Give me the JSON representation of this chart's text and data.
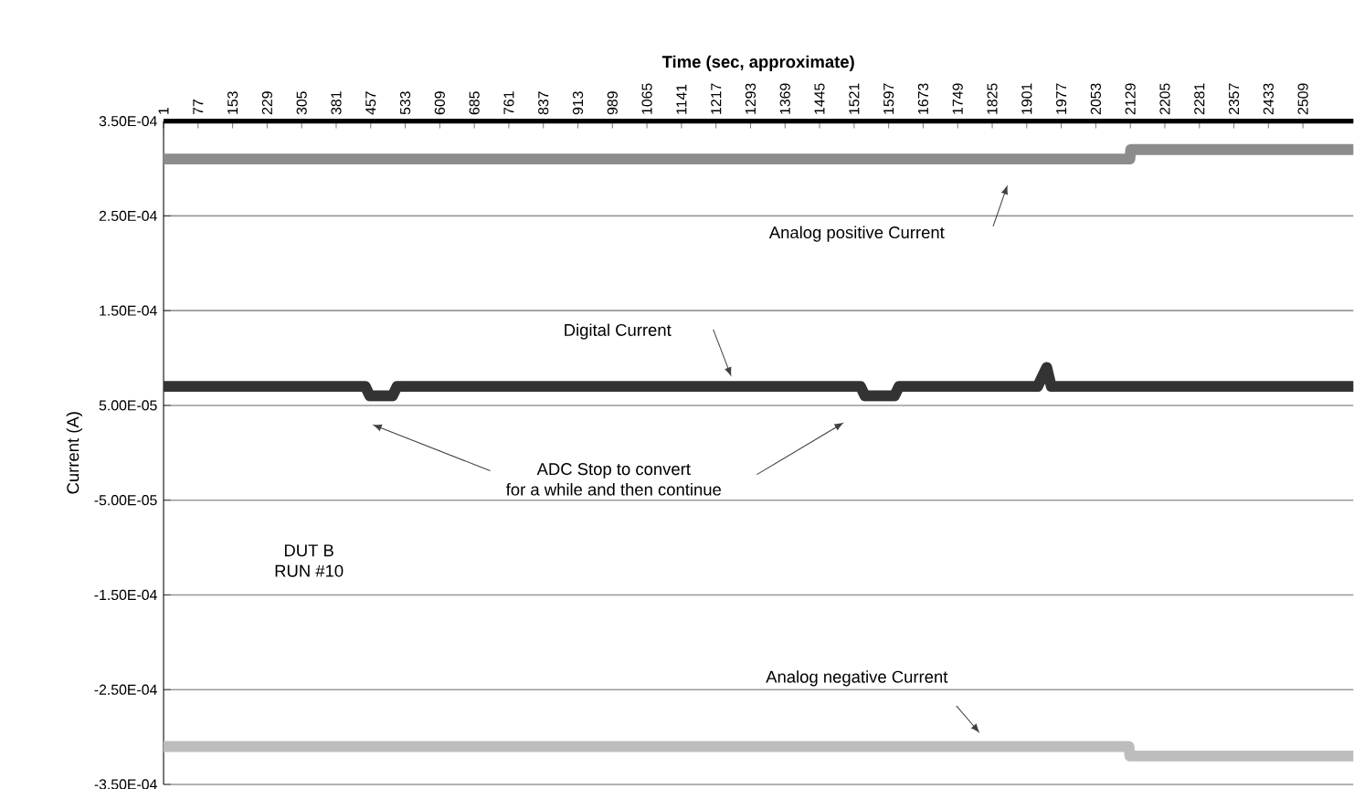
{
  "chart_data": {
    "type": "line",
    "xlabel": "Time (sec, approximate)",
    "ylabel": "Current (A)",
    "xlim": [
      1,
      2620
    ],
    "xticks": [
      1,
      77,
      153,
      229,
      305,
      381,
      457,
      533,
      609,
      685,
      761,
      837,
      913,
      989,
      1065,
      1141,
      1217,
      1293,
      1369,
      1445,
      1521,
      1597,
      1673,
      1749,
      1825,
      1901,
      1977,
      2053,
      2129,
      2205,
      2281,
      2357,
      2433,
      2509
    ],
    "ylim": [
      -0.00035,
      0.00035
    ],
    "yticks": [
      {
        "value": -0.00035,
        "label": "-3.50E-04"
      },
      {
        "value": -0.00025,
        "label": "-2.50E-04"
      },
      {
        "value": -0.00015,
        "label": "-1.50E-04"
      },
      {
        "value": -5e-05,
        "label": "-5.00E-05"
      },
      {
        "value": 5e-05,
        "label": "5.00E-05"
      },
      {
        "value": 0.00015,
        "label": "1.50E-04"
      },
      {
        "value": 0.00025,
        "label": "2.50E-04"
      },
      {
        "value": 0.00035,
        "label": "3.50E-04"
      }
    ],
    "grid": "y",
    "marker": "none",
    "line_style": "solid",
    "series": [
      {
        "color": "#8c8c8c",
        "x": [
          1,
          2128,
          2130,
          2620
        ],
        "values": [
          0.00031,
          0.00031,
          0.00032,
          0.00032
        ]
      },
      {
        "color": "#333333",
        "x": [
          1,
          445,
          455,
          505,
          515,
          1535,
          1545,
          1610,
          1620,
          1925,
          1945,
          1955,
          2620
        ],
        "values": [
          7e-05,
          7e-05,
          6e-05,
          6e-05,
          7e-05,
          7e-05,
          6e-05,
          6e-05,
          7e-05,
          7e-05,
          9e-05,
          7e-05,
          7e-05
        ]
      },
      {
        "color": "#bdbdbd",
        "x": [
          1,
          2126,
          2128,
          2620
        ],
        "values": [
          -0.00031,
          -0.00031,
          -0.00032,
          -0.00032
        ]
      }
    ],
    "annotations": [
      "Analog positive Current",
      "Digital Current",
      "Analog negative Current",
      "ADC Stop to convert\nfor a while and then continue",
      "DUT B\nRUN #10"
    ]
  }
}
